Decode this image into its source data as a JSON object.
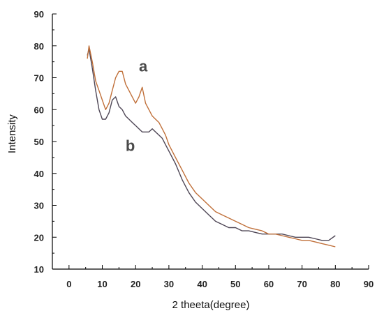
{
  "chart_data": {
    "type": "line",
    "title": "",
    "xlabel": "2 theeta(degree)",
    "ylabel": "Intensity",
    "xlim": [
      -5,
      90
    ],
    "ylim": [
      10,
      90
    ],
    "x_ticks": [
      0,
      10,
      20,
      30,
      40,
      50,
      60,
      70,
      80,
      90
    ],
    "y_ticks": [
      10,
      20,
      30,
      40,
      50,
      60,
      70,
      80,
      90
    ],
    "grid": false,
    "legend": "none",
    "series": [
      {
        "name": "a",
        "color": "#c0703a",
        "x": [
          5.5,
          6,
          7,
          8,
          9,
          10,
          11,
          12,
          13,
          14,
          15,
          16,
          17,
          18,
          19,
          20,
          21,
          22,
          23,
          24,
          25,
          26,
          27,
          28,
          29,
          30,
          32,
          34,
          36,
          38,
          40,
          42,
          44,
          46,
          48,
          50,
          52,
          54,
          56,
          58,
          60,
          62,
          64,
          66,
          68,
          70,
          72,
          74,
          76,
          78,
          80
        ],
        "y": [
          76,
          80,
          75,
          69,
          66,
          63,
          60,
          62,
          66,
          70,
          72,
          72,
          68,
          66,
          64,
          62,
          64,
          67,
          62,
          60,
          58,
          57,
          56,
          54,
          52,
          49,
          45,
          41,
          37,
          34,
          32,
          30,
          28,
          27,
          26,
          25,
          24,
          23,
          22.5,
          22,
          21,
          21,
          20.5,
          20,
          19.5,
          19,
          19,
          18.5,
          18,
          17.5,
          17
        ]
      },
      {
        "name": "b",
        "color": "#4e4655",
        "x": [
          5.5,
          6,
          7,
          8,
          9,
          10,
          11,
          12,
          13,
          14,
          15,
          16,
          17,
          18,
          19,
          20,
          21,
          22,
          23,
          24,
          25,
          26,
          27,
          28,
          29,
          30,
          32,
          34,
          36,
          38,
          40,
          42,
          44,
          46,
          48,
          50,
          52,
          54,
          56,
          58,
          60,
          62,
          64,
          66,
          68,
          70,
          72,
          74,
          76,
          78,
          80
        ],
        "y": [
          77,
          79,
          73,
          66,
          60,
          57,
          57,
          59,
          63,
          64,
          61,
          60,
          58,
          57,
          56,
          55,
          54,
          53,
          53,
          53,
          54,
          53,
          52,
          51,
          49,
          47,
          43,
          38,
          34,
          31,
          29,
          27,
          25,
          24,
          23,
          23,
          22,
          22,
          21.5,
          21,
          21,
          21,
          21,
          20.5,
          20,
          20,
          20,
          19.5,
          19,
          19,
          20.5
        ]
      }
    ],
    "annotations": [
      {
        "text": "a",
        "x": 21,
        "y": 72
      },
      {
        "text": "b",
        "x": 17,
        "y": 47
      }
    ]
  }
}
